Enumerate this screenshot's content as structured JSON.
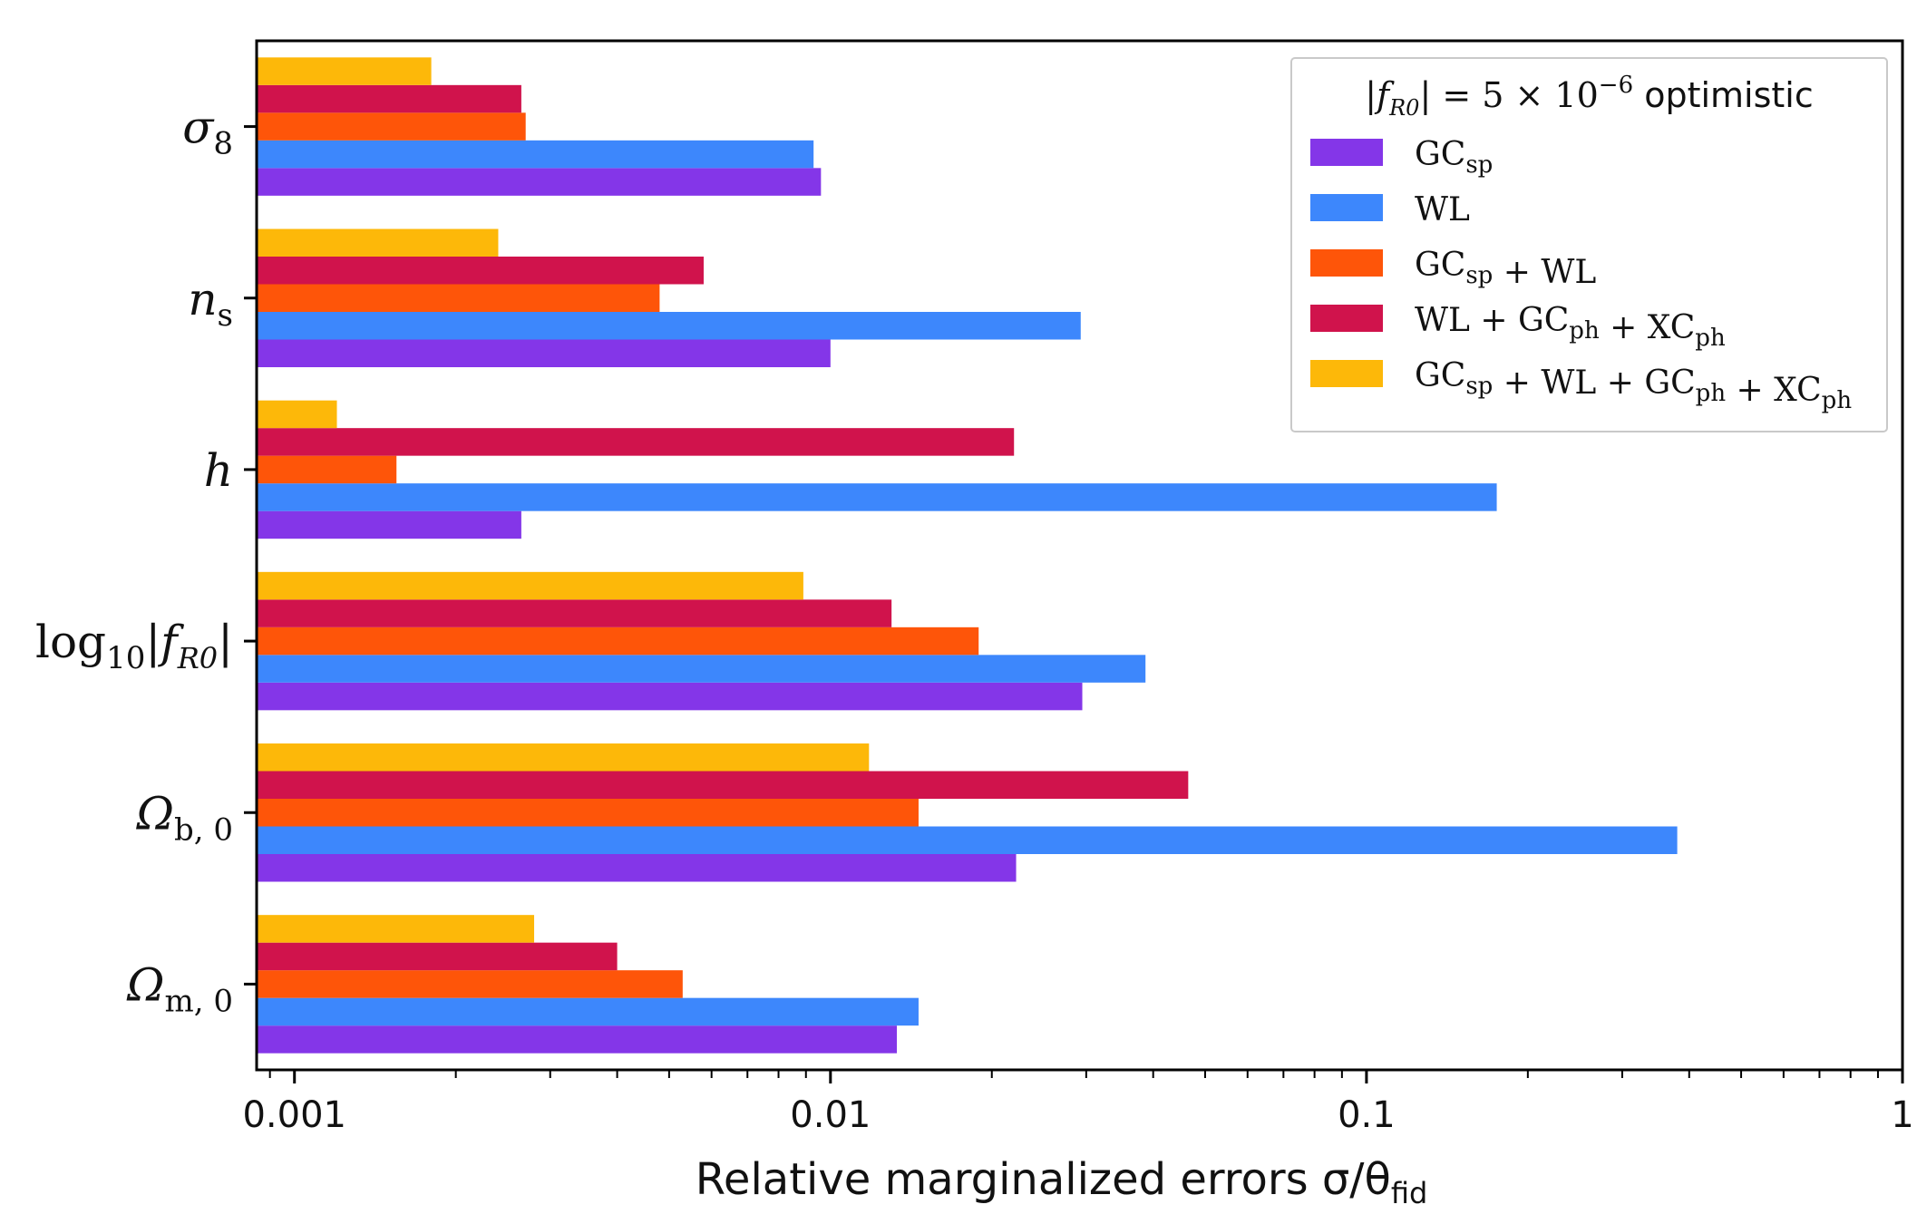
{
  "chart_data": {
    "type": "bar",
    "orientation": "horizontal",
    "x_scale": "log",
    "xlim": [
      0.00085,
      1
    ],
    "xlabel": "Relative marginalized errors σ/θ_fid",
    "xlabel_parts": {
      "main": "Relative marginalized errors σ/θ",
      "sub": "fid"
    },
    "x_ticks": [
      {
        "value": 0.001,
        "label": "0.001"
      },
      {
        "value": 0.01,
        "label": "0.01"
      },
      {
        "value": 0.1,
        "label": "0.1"
      },
      {
        "value": 1,
        "label": "1"
      }
    ],
    "legend_title": "|f_R0| = 5 × 10⁻⁶ optimistic",
    "legend_title_parts": {
      "pre": "|f",
      "sub": "R0",
      "mid": "| = 5 × 10",
      "sup": "−6",
      "post": " optimistic"
    },
    "legend_position": "top-right",
    "categories": [
      {
        "main": "Ω",
        "sub": "m, 0"
      },
      {
        "main": "Ω",
        "sub": "b, 0"
      },
      {
        "main": "log",
        "sub": "10",
        "tail": "|f",
        "sub2": "R0",
        "tail2": "|"
      },
      {
        "main": "h",
        "sub": ""
      },
      {
        "main": "n",
        "sub": "s"
      },
      {
        "main": "σ",
        "sub": "8"
      }
    ],
    "series": [
      {
        "name": "GC_sp",
        "label_parts": [
          [
            "GC",
            "sp"
          ]
        ],
        "color": "#8436e8",
        "values": [
          0.0133,
          0.0222,
          0.0295,
          0.00265,
          0.01,
          0.0096
        ]
      },
      {
        "name": "WL",
        "label_parts": [
          [
            "WL",
            ""
          ]
        ],
        "color": "#3d87fc",
        "values": [
          0.0146,
          0.38,
          0.0387,
          0.175,
          0.0293,
          0.0093
        ]
      },
      {
        "name": "GC_sp + WL",
        "label_parts": [
          [
            "GC",
            "sp"
          ],
          [
            "WL",
            ""
          ]
        ],
        "color": "#fe5509",
        "values": [
          0.0053,
          0.0146,
          0.0189,
          0.00155,
          0.0048,
          0.0027
        ]
      },
      {
        "name": "WL + GC_ph + XC_ph",
        "label_parts": [
          [
            "WL",
            ""
          ],
          [
            "GC",
            "ph"
          ],
          [
            "XC",
            "ph"
          ]
        ],
        "color": "#d0134c",
        "values": [
          0.004,
          0.0465,
          0.013,
          0.022,
          0.0058,
          0.00265
        ]
      },
      {
        "name": "GC_sp + WL + GC_ph + XC_ph",
        "label_parts": [
          [
            "GC",
            "sp"
          ],
          [
            "WL",
            ""
          ],
          [
            "GC",
            "ph"
          ],
          [
            "XC",
            "ph"
          ]
        ],
        "color": "#fdb809",
        "values": [
          0.0028,
          0.0118,
          0.0089,
          0.0012,
          0.0024,
          0.0018
        ]
      }
    ]
  }
}
